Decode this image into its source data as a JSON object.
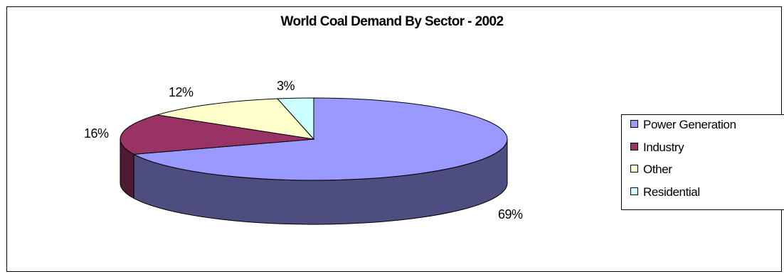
{
  "chart_data": {
    "type": "pie",
    "title": "World Coal Demand By Sector - 2002",
    "slices": [
      {
        "label": "Power Generation",
        "value": 69,
        "display": "69%",
        "color": "#9999ff",
        "side": "#4d4d80"
      },
      {
        "label": "Industry",
        "value": 16,
        "display": "16%",
        "color": "#993366",
        "side": "#4d1a33"
      },
      {
        "label": "Other",
        "value": 12,
        "display": "12%",
        "color": "#ffffcc",
        "side": "#808066"
      },
      {
        "label": "Residential",
        "value": 3,
        "display": "3%",
        "color": "#ccffff",
        "side": "#668080"
      }
    ],
    "legend": [
      "Power Generation",
      "Industry",
      "Other",
      "Residential"
    ],
    "legend_position": "right",
    "style": "3d-pie"
  }
}
